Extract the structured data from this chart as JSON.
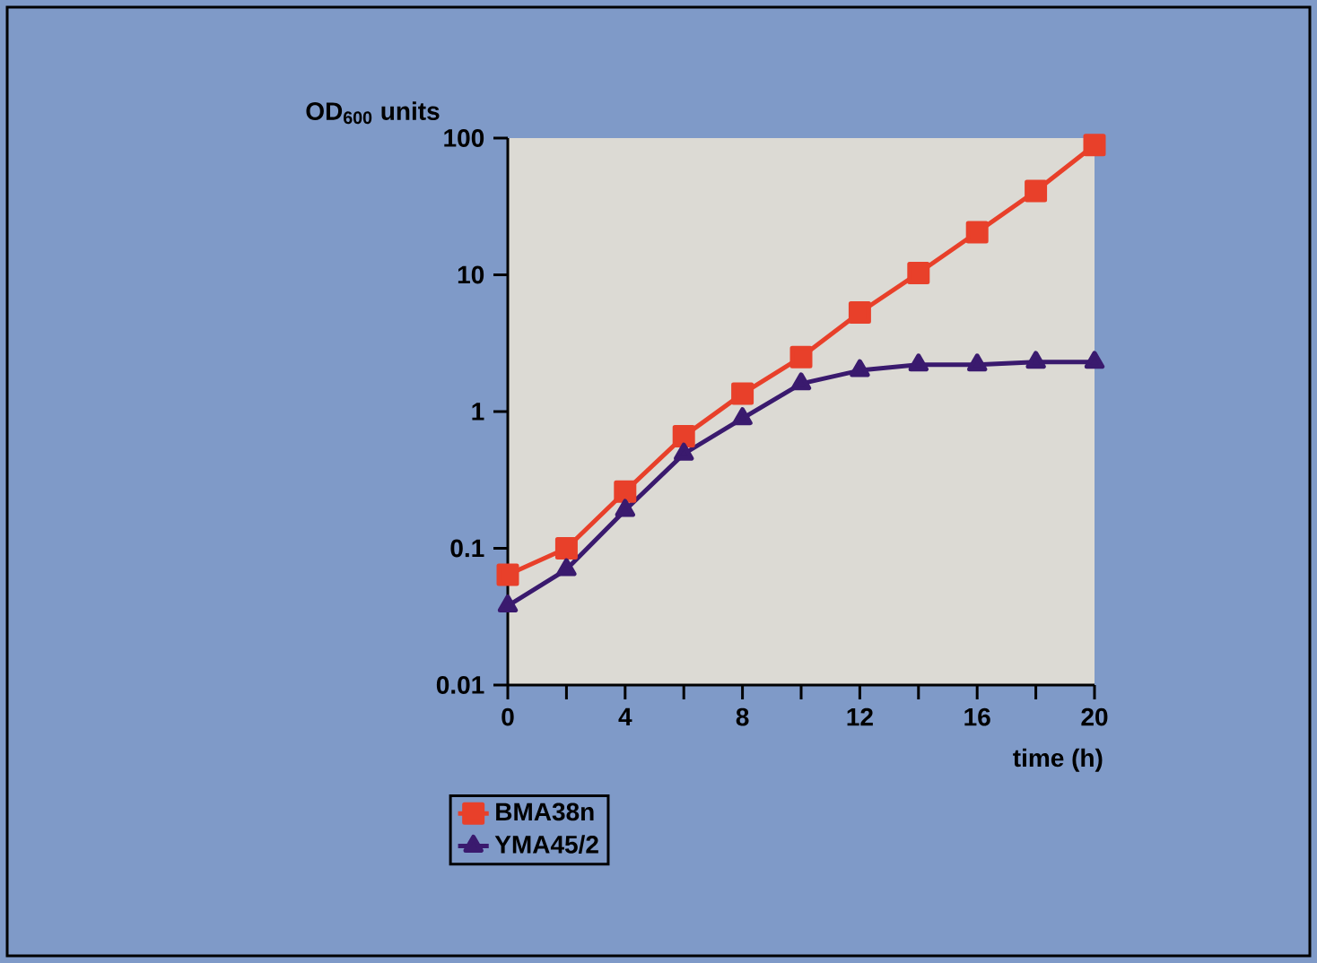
{
  "chart_data": {
    "type": "line",
    "ylabel": "OD$_{600}$ units",
    "xlabel": "time (h)",
    "x": [
      0,
      2,
      4,
      6,
      8,
      10,
      12,
      14,
      16,
      18,
      20
    ],
    "series": [
      {
        "name": "BMA38n",
        "color": "#e8402a",
        "marker": "square",
        "values": [
          0.064,
          0.1,
          0.26,
          0.66,
          1.35,
          2.5,
          5.3,
          10.3,
          20.5,
          41,
          89
        ]
      },
      {
        "name": "YMA45/2",
        "color": "#3a1a6e",
        "marker": "triangle",
        "values": [
          0.038,
          0.07,
          0.19,
          0.49,
          0.89,
          1.6,
          2.0,
          2.2,
          2.2,
          2.3,
          2.3
        ]
      }
    ],
    "log": "y",
    "xlim": [
      0,
      20
    ],
    "ylim": [
      0.01,
      100
    ],
    "xticks": [
      0,
      {
        "value": 2,
        "label": null
      },
      4,
      {
        "value": 6,
        "label": null
      },
      8,
      {
        "value": 10,
        "label": null
      },
      12,
      {
        "value": 14,
        "label": null
      },
      16,
      {
        "value": 18,
        "label": null
      },
      20
    ],
    "yticks": [
      0.01,
      0.1,
      1,
      10,
      100
    ],
    "grid": false,
    "legend": "bottom left",
    "line_style": "solid"
  }
}
